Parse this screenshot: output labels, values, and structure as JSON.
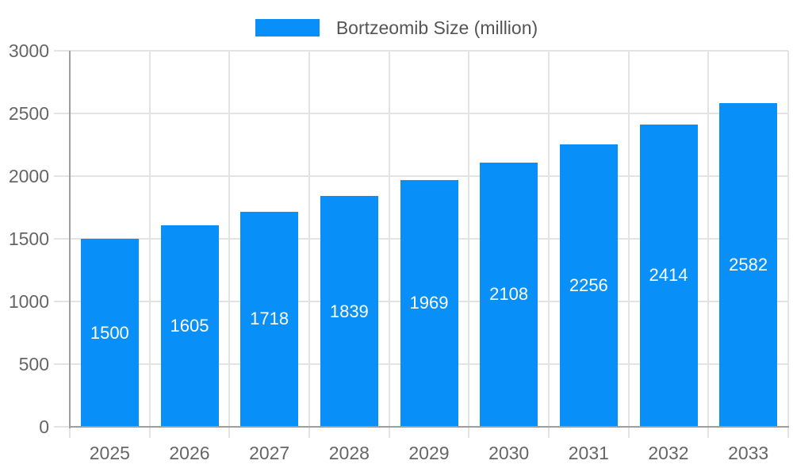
{
  "legend": {
    "label": "Bortzeomib Size (million)"
  },
  "chart_data": {
    "type": "bar",
    "title": "",
    "categories": [
      "2025",
      "2026",
      "2027",
      "2028",
      "2029",
      "2030",
      "2031",
      "2032",
      "2033"
    ],
    "series": [
      {
        "name": "Bortzeomib Size (million)",
        "values": [
          1500,
          1605,
          1718,
          1839,
          1969,
          2108,
          2256,
          2414,
          2582
        ]
      }
    ],
    "xlabel": "",
    "ylabel": "",
    "ylim": [
      0,
      3000
    ],
    "yticks": [
      0,
      500,
      1000,
      1500,
      2000,
      2500,
      3000
    ],
    "grid": true,
    "legend_position": "top-center",
    "value_labels": "inside-center",
    "colors": {
      "bar": "#0890F8",
      "grid": "#E3E3E3",
      "axis": "#9E9E9E",
      "tick_label": "#666666",
      "legend_text": "#555555",
      "value_label": "#FFFFFF",
      "background": "#FFFFFF"
    }
  }
}
